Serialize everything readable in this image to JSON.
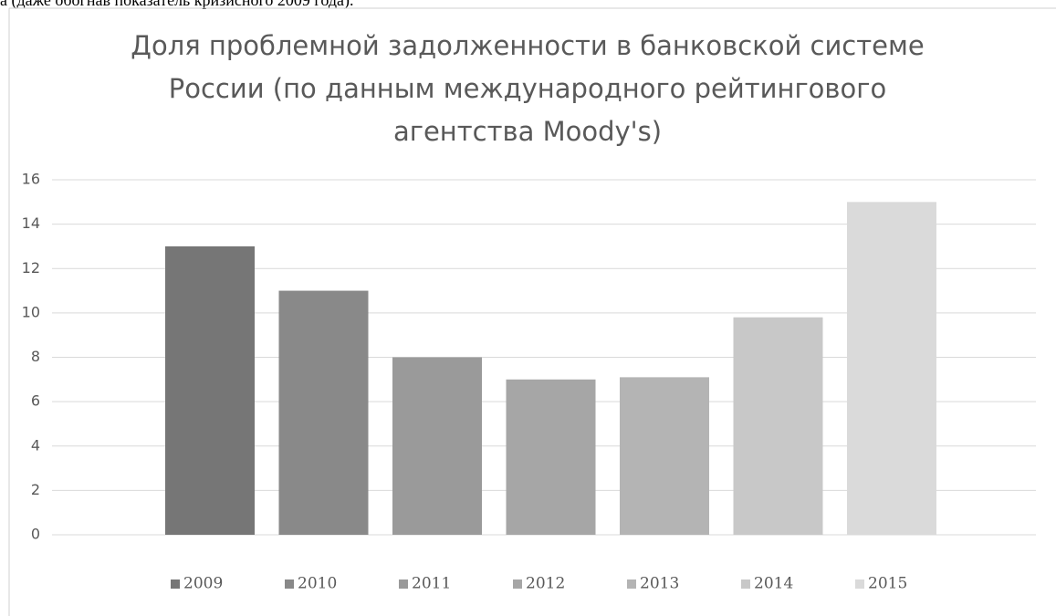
{
  "top_text": "а (даже обогнав показатель кризисного 2009 года).",
  "chart_data": {
    "type": "bar",
    "title": [
      "Доля проблемной задолженности в банковской системе",
      "России (по данным международного рейтингового",
      "агентства Moody's)"
    ],
    "categories": [
      null
    ],
    "series": [
      {
        "name": "2009",
        "color": "#767676",
        "values": [
          13
        ]
      },
      {
        "name": "2010",
        "color": "#898989",
        "values": [
          11
        ]
      },
      {
        "name": "2011",
        "color": "#9a9a9a",
        "values": [
          8
        ]
      },
      {
        "name": "2012",
        "color": "#a6a6a6",
        "values": [
          7
        ]
      },
      {
        "name": "2013",
        "color": "#b4b4b4",
        "values": [
          7.1
        ]
      },
      {
        "name": "2014",
        "color": "#c8c8c8",
        "values": [
          9.8
        ]
      },
      {
        "name": "2015",
        "color": "#dadada",
        "values": [
          15
        ]
      }
    ],
    "ylim": [
      0,
      16
    ],
    "yticks": [
      0,
      2,
      4,
      6,
      8,
      10,
      12,
      14,
      16
    ],
    "grid": true,
    "legend": "bottom"
  }
}
